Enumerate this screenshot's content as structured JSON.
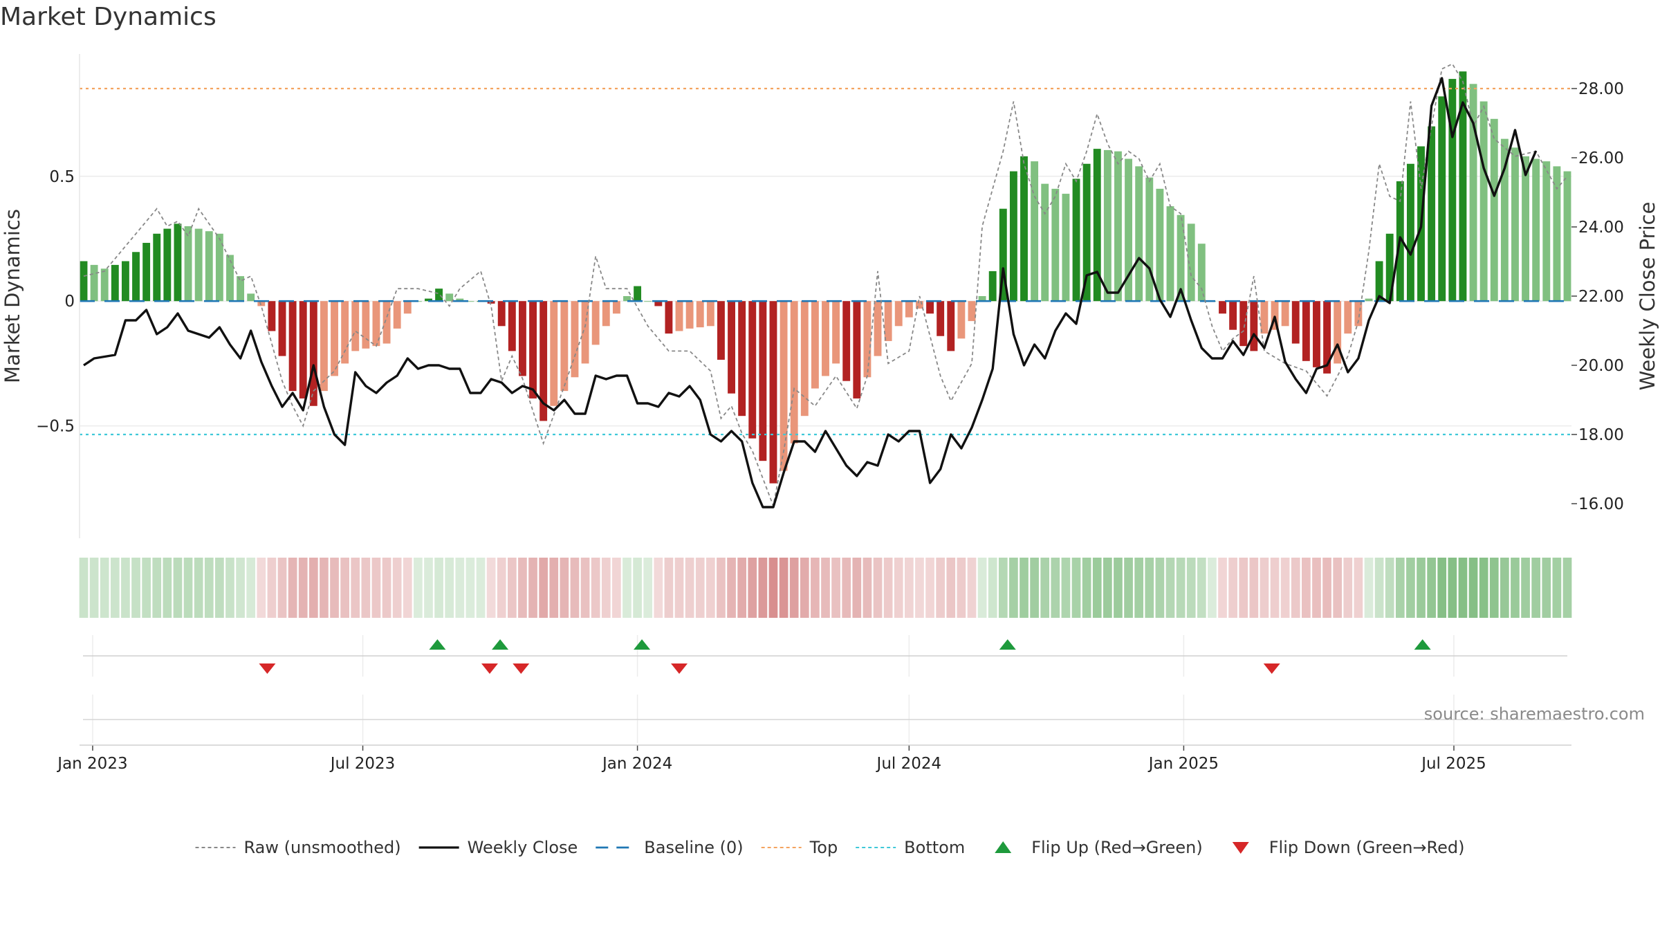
{
  "chart_data": {
    "type": "bar",
    "title": "Market Dynamics",
    "ylabel_left": "Market Dynamics",
    "ylabel_right": "Weekly Close Price",
    "ylim_left": [
      -0.95,
      0.99
    ],
    "ylim_right": [
      15.0,
      29.0
    ],
    "left_ticks": [
      {
        "value": 0.5,
        "label": "0.5"
      },
      {
        "value": 0,
        "label": "0"
      },
      {
        "value": -0.5,
        "label": "−0.5"
      }
    ],
    "right_ticks": [
      {
        "value": 28,
        "label": "28.00"
      },
      {
        "value": 26,
        "label": "26.00"
      },
      {
        "value": 24,
        "label": "24.00"
      },
      {
        "value": 22,
        "label": "22.00"
      },
      {
        "value": 20,
        "label": "20.00"
      },
      {
        "value": 18,
        "label": "18.00"
      },
      {
        "value": 16,
        "label": "16.00"
      }
    ],
    "x_start": "2022-12-26",
    "weeks": 143,
    "x_ticks": [
      {
        "date": "2023-01-01",
        "label": "Jan 2023"
      },
      {
        "date": "2023-07-01",
        "label": "Jul 2023"
      },
      {
        "date": "2024-01-01",
        "label": "Jan 2024"
      },
      {
        "date": "2024-07-01",
        "label": "Jul 2024"
      },
      {
        "date": "2025-01-01",
        "label": "Jan 2025"
      },
      {
        "date": "2025-07-01",
        "label": "Jul 2025"
      }
    ],
    "top_line": 28.0,
    "bottom_line": 18.0,
    "baseline": 0,
    "grid": true,
    "legend_position": "bottom",
    "source": "source: sharemaestro.com",
    "colors": {
      "green_strong": "#228b22",
      "green_light": "#80c080",
      "red_strong": "#b22222",
      "red_light": "#e9967a",
      "raw": "#888888",
      "close": "#111111",
      "baseline": "#1f77b4",
      "top": "#f4a460",
      "bottom": "#3fc8d8",
      "flip_up": "#1e9a3c",
      "flip_down": "#d62728"
    },
    "flip_up_dates": [
      "2023-08-20",
      "2023-10-01",
      "2024-01-04",
      "2024-09-05",
      "2025-06-10"
    ],
    "flip_down_dates": [
      "2023-04-28",
      "2023-09-24",
      "2023-10-15",
      "2024-01-29",
      "2025-03-01"
    ],
    "legend": [
      {
        "label": "Raw (unsmoothed)",
        "kind": "dotted-line",
        "color": "#888888"
      },
      {
        "label": "Weekly Close",
        "kind": "solid-line",
        "color": "#111111"
      },
      {
        "label": "Baseline (0)",
        "kind": "dashed-line",
        "color": "#1f77b4"
      },
      {
        "label": "Top",
        "kind": "dotted-line",
        "color": "#f4a460"
      },
      {
        "label": "Bottom",
        "kind": "dotted-line",
        "color": "#3fc8d8"
      },
      {
        "label": "Flip Up (Red→Green)",
        "kind": "triangle-up",
        "color": "#1e9a3c"
      },
      {
        "label": "Flip Down (Green→Red)",
        "kind": "triangle-down",
        "color": "#d62728"
      }
    ],
    "dynamics_knots": [
      [
        0,
        0.16
      ],
      [
        2,
        0.13
      ],
      [
        4,
        0.16
      ],
      [
        7,
        0.27
      ],
      [
        9,
        0.31
      ],
      [
        11,
        0.29
      ],
      [
        13,
        0.27
      ],
      [
        15,
        0.1
      ],
      [
        16,
        0.03
      ],
      [
        17,
        -0.02
      ],
      [
        19,
        -0.22
      ],
      [
        20,
        -0.36
      ],
      [
        22,
        -0.42
      ],
      [
        24,
        -0.3
      ],
      [
        26,
        -0.2
      ],
      [
        29,
        -0.17
      ],
      [
        31,
        -0.05
      ],
      [
        32,
        0.0
      ],
      [
        33,
        0.01
      ],
      [
        34,
        0.05
      ],
      [
        35,
        0.03
      ],
      [
        36,
        0.01
      ],
      [
        37,
        0.0
      ],
      [
        38,
        0.0
      ],
      [
        39,
        -0.01
      ],
      [
        40,
        -0.1
      ],
      [
        42,
        -0.3
      ],
      [
        44,
        -0.48
      ],
      [
        46,
        -0.36
      ],
      [
        48,
        -0.25
      ],
      [
        50,
        -0.1
      ],
      [
        51,
        -0.05
      ],
      [
        52,
        0.02
      ],
      [
        53,
        0.06
      ],
      [
        54,
        0.0
      ],
      [
        55,
        -0.02
      ],
      [
        56,
        -0.13
      ],
      [
        58,
        -0.11
      ],
      [
        60,
        -0.1
      ],
      [
        62,
        -0.37
      ],
      [
        64,
        -0.55
      ],
      [
        66,
        -0.73
      ],
      [
        67,
        -0.68
      ],
      [
        68,
        -0.57
      ],
      [
        70,
        -0.35
      ],
      [
        72,
        -0.25
      ],
      [
        74,
        -0.39
      ],
      [
        76,
        -0.22
      ],
      [
        78,
        -0.1
      ],
      [
        80,
        -0.03
      ],
      [
        81,
        -0.05
      ],
      [
        82,
        -0.14
      ],
      [
        83,
        -0.2
      ],
      [
        84,
        -0.15
      ],
      [
        85,
        -0.08
      ],
      [
        86,
        0.02
      ],
      [
        87,
        0.12
      ],
      [
        88,
        0.37
      ],
      [
        89,
        0.52
      ],
      [
        90,
        0.58
      ],
      [
        91,
        0.56
      ],
      [
        92,
        0.47
      ],
      [
        94,
        0.43
      ],
      [
        96,
        0.55
      ],
      [
        97,
        0.61
      ],
      [
        99,
        0.6
      ],
      [
        101,
        0.54
      ],
      [
        103,
        0.45
      ],
      [
        104,
        0.38
      ],
      [
        106,
        0.31
      ],
      [
        107,
        0.23
      ],
      [
        108,
        0.0
      ],
      [
        109,
        -0.05
      ],
      [
        111,
        -0.18
      ],
      [
        112,
        -0.2
      ],
      [
        113,
        -0.13
      ],
      [
        115,
        -0.1
      ],
      [
        117,
        -0.24
      ],
      [
        119,
        -0.29
      ],
      [
        120,
        -0.25
      ],
      [
        121,
        -0.13
      ],
      [
        122,
        -0.1
      ],
      [
        123,
        0.01
      ],
      [
        124,
        0.16
      ],
      [
        125,
        0.27
      ],
      [
        126,
        0.48
      ],
      [
        128,
        0.62
      ],
      [
        129,
        0.7
      ],
      [
        130,
        0.82
      ],
      [
        131,
        0.89
      ],
      [
        132,
        0.92
      ],
      [
        133,
        0.87
      ],
      [
        134,
        0.8
      ],
      [
        135,
        0.73
      ],
      [
        136,
        0.65
      ],
      [
        138,
        0.58
      ],
      [
        140,
        0.56
      ],
      [
        142,
        0.52
      ]
    ],
    "raw_knots": [
      [
        0,
        0.1
      ],
      [
        2,
        0.12
      ],
      [
        4,
        0.22
      ],
      [
        7,
        0.37
      ],
      [
        8,
        0.3
      ],
      [
        9,
        0.32
      ],
      [
        10,
        0.26
      ],
      [
        11,
        0.37
      ],
      [
        13,
        0.25
      ],
      [
        15,
        0.08
      ],
      [
        16,
        0.1
      ],
      [
        17,
        -0.02
      ],
      [
        19,
        -0.32
      ],
      [
        20,
        -0.42
      ],
      [
        21,
        -0.5
      ],
      [
        22,
        -0.36
      ],
      [
        24,
        -0.28
      ],
      [
        26,
        -0.12
      ],
      [
        28,
        -0.18
      ],
      [
        30,
        0.05
      ],
      [
        32,
        0.05
      ],
      [
        34,
        0.03
      ],
      [
        35,
        -0.02
      ],
      [
        36,
        0.05
      ],
      [
        38,
        0.12
      ],
      [
        39,
        -0.02
      ],
      [
        40,
        -0.32
      ],
      [
        41,
        -0.22
      ],
      [
        42,
        -0.31
      ],
      [
        44,
        -0.57
      ],
      [
        46,
        -0.34
      ],
      [
        48,
        -0.1
      ],
      [
        49,
        0.18
      ],
      [
        50,
        0.05
      ],
      [
        52,
        0.05
      ],
      [
        54,
        -0.1
      ],
      [
        56,
        -0.2
      ],
      [
        58,
        -0.2
      ],
      [
        60,
        -0.28
      ],
      [
        61,
        -0.47
      ],
      [
        62,
        -0.42
      ],
      [
        63,
        -0.53
      ],
      [
        64,
        -0.6
      ],
      [
        66,
        -0.82
      ],
      [
        67,
        -0.6
      ],
      [
        68,
        -0.35
      ],
      [
        70,
        -0.42
      ],
      [
        72,
        -0.3
      ],
      [
        74,
        -0.43
      ],
      [
        75,
        -0.3
      ],
      [
        76,
        0.12
      ],
      [
        77,
        -0.25
      ],
      [
        79,
        -0.2
      ],
      [
        80,
        0.02
      ],
      [
        82,
        -0.3
      ],
      [
        83,
        -0.4
      ],
      [
        85,
        -0.25
      ],
      [
        86,
        0.3
      ],
      [
        88,
        0.6
      ],
      [
        89,
        0.8
      ],
      [
        90,
        0.55
      ],
      [
        91,
        0.42
      ],
      [
        92,
        0.35
      ],
      [
        93,
        0.42
      ],
      [
        94,
        0.55
      ],
      [
        95,
        0.48
      ],
      [
        96,
        0.6
      ],
      [
        97,
        0.75
      ],
      [
        98,
        0.63
      ],
      [
        99,
        0.55
      ],
      [
        100,
        0.6
      ],
      [
        101,
        0.57
      ],
      [
        102,
        0.48
      ],
      [
        103,
        0.55
      ],
      [
        104,
        0.38
      ],
      [
        105,
        0.35
      ],
      [
        106,
        0.1
      ],
      [
        107,
        0.05
      ],
      [
        108,
        -0.1
      ],
      [
        109,
        -0.2
      ],
      [
        110,
        -0.15
      ],
      [
        111,
        -0.12
      ],
      [
        112,
        0.1
      ],
      [
        113,
        -0.2
      ],
      [
        115,
        -0.25
      ],
      [
        117,
        -0.28
      ],
      [
        119,
        -0.38
      ],
      [
        121,
        -0.22
      ],
      [
        122,
        -0.08
      ],
      [
        123,
        0.2
      ],
      [
        124,
        0.55
      ],
      [
        125,
        0.42
      ],
      [
        126,
        0.4
      ],
      [
        127,
        0.8
      ],
      [
        128,
        0.45
      ],
      [
        129,
        0.7
      ],
      [
        130,
        0.93
      ],
      [
        131,
        0.95
      ],
      [
        132,
        0.88
      ],
      [
        133,
        0.7
      ],
      [
        134,
        0.78
      ],
      [
        135,
        0.65
      ],
      [
        137,
        0.58
      ],
      [
        139,
        0.6
      ],
      [
        141,
        0.45
      ],
      [
        142,
        0.5
      ]
    ],
    "close_knots": [
      [
        0,
        20.0
      ],
      [
        1,
        20.2
      ],
      [
        3,
        20.3
      ],
      [
        4,
        21.3
      ],
      [
        5,
        21.3
      ],
      [
        6,
        21.6
      ],
      [
        7,
        20.9
      ],
      [
        8,
        21.1
      ],
      [
        9,
        21.5
      ],
      [
        10,
        21.0
      ],
      [
        12,
        20.8
      ],
      [
        13,
        21.1
      ],
      [
        14,
        20.6
      ],
      [
        15,
        20.2
      ],
      [
        16,
        21.0
      ],
      [
        17,
        20.1
      ],
      [
        18,
        19.4
      ],
      [
        19,
        18.8
      ],
      [
        20,
        19.2
      ],
      [
        21,
        18.7
      ],
      [
        22,
        20.0
      ],
      [
        23,
        18.8
      ],
      [
        24,
        18.0
      ],
      [
        25,
        17.7
      ],
      [
        26,
        19.8
      ],
      [
        27,
        19.4
      ],
      [
        28,
        19.2
      ],
      [
        29,
        19.5
      ],
      [
        30,
        19.7
      ],
      [
        31,
        20.2
      ],
      [
        32,
        19.9
      ],
      [
        33,
        20.0
      ],
      [
        34,
        20.0
      ],
      [
        35,
        19.9
      ],
      [
        36,
        19.9
      ],
      [
        37,
        19.2
      ],
      [
        38,
        19.2
      ],
      [
        39,
        19.6
      ],
      [
        40,
        19.5
      ],
      [
        41,
        19.2
      ],
      [
        42,
        19.4
      ],
      [
        43,
        19.3
      ],
      [
        44,
        18.9
      ],
      [
        45,
        18.7
      ],
      [
        46,
        19.0
      ],
      [
        47,
        18.6
      ],
      [
        48,
        18.6
      ],
      [
        49,
        19.7
      ],
      [
        50,
        19.6
      ],
      [
        51,
        19.7
      ],
      [
        52,
        19.7
      ],
      [
        53,
        18.9
      ],
      [
        54,
        18.9
      ],
      [
        55,
        18.8
      ],
      [
        56,
        19.2
      ],
      [
        57,
        19.1
      ],
      [
        58,
        19.4
      ],
      [
        59,
        19.0
      ],
      [
        60,
        18.0
      ],
      [
        61,
        17.8
      ],
      [
        62,
        18.1
      ],
      [
        63,
        17.8
      ],
      [
        64,
        16.6
      ],
      [
        65,
        15.9
      ],
      [
        66,
        15.9
      ],
      [
        67,
        16.9
      ],
      [
        68,
        17.8
      ],
      [
        69,
        17.8
      ],
      [
        70,
        17.5
      ],
      [
        71,
        18.1
      ],
      [
        72,
        17.6
      ],
      [
        73,
        17.1
      ],
      [
        74,
        16.8
      ],
      [
        75,
        17.2
      ],
      [
        76,
        17.1
      ],
      [
        77,
        18.0
      ],
      [
        78,
        17.8
      ],
      [
        79,
        18.1
      ],
      [
        80,
        18.1
      ],
      [
        81,
        16.6
      ],
      [
        82,
        17.0
      ],
      [
        83,
        18.0
      ],
      [
        84,
        17.6
      ],
      [
        85,
        18.2
      ],
      [
        86,
        19.0
      ],
      [
        87,
        19.9
      ],
      [
        88,
        22.8
      ],
      [
        89,
        20.9
      ],
      [
        90,
        20.0
      ],
      [
        91,
        20.6
      ],
      [
        92,
        20.2
      ],
      [
        93,
        21.0
      ],
      [
        94,
        21.5
      ],
      [
        95,
        21.2
      ],
      [
        96,
        22.6
      ],
      [
        97,
        22.7
      ],
      [
        98,
        22.1
      ],
      [
        99,
        22.1
      ],
      [
        100,
        22.6
      ],
      [
        101,
        23.1
      ],
      [
        102,
        22.8
      ],
      [
        103,
        21.9
      ],
      [
        104,
        21.4
      ],
      [
        105,
        22.2
      ],
      [
        106,
        21.3
      ],
      [
        107,
        20.5
      ],
      [
        108,
        20.2
      ],
      [
        109,
        20.2
      ],
      [
        110,
        20.7
      ],
      [
        111,
        20.3
      ],
      [
        112,
        20.9
      ],
      [
        113,
        20.5
      ],
      [
        114,
        21.4
      ],
      [
        115,
        20.1
      ],
      [
        116,
        19.6
      ],
      [
        117,
        19.2
      ],
      [
        118,
        19.9
      ],
      [
        119,
        20.0
      ],
      [
        120,
        20.6
      ],
      [
        121,
        19.8
      ],
      [
        122,
        20.2
      ],
      [
        123,
        21.3
      ],
      [
        124,
        22.0
      ],
      [
        125,
        21.8
      ],
      [
        126,
        23.7
      ],
      [
        127,
        23.2
      ],
      [
        128,
        24.0
      ],
      [
        129,
        27.5
      ],
      [
        130,
        28.3
      ],
      [
        131,
        26.6
      ],
      [
        132,
        27.6
      ],
      [
        133,
        27.0
      ],
      [
        134,
        25.7
      ],
      [
        135,
        24.9
      ],
      [
        136,
        25.7
      ],
      [
        137,
        26.8
      ],
      [
        138,
        25.5
      ],
      [
        139,
        26.2
      ]
    ]
  }
}
